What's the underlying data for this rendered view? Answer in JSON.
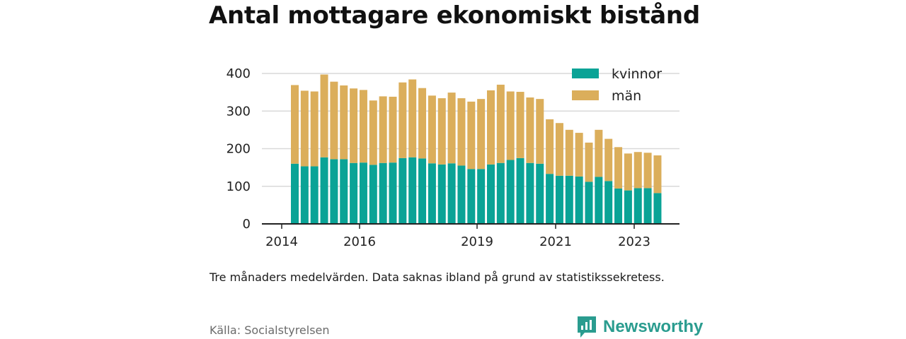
{
  "title": "Antal mottagare ekonomiskt bistånd",
  "note": "Tre månaders medelvärden. Data saknas ibland på grund av statistikssekretess.",
  "source": "Källa: Socialstyrelsen",
  "brand": {
    "name": "Newsworthy",
    "icon": "newsworthy-logo-icon",
    "color": "#2a9c8f"
  },
  "chart_data": {
    "type": "bar",
    "stacked": true,
    "x_tick_labels": [
      "2014",
      "2016",
      "2019",
      "2021",
      "2023"
    ],
    "y_ticks": [
      0,
      100,
      200,
      300,
      400
    ],
    "ylim": [
      0,
      410
    ],
    "grid": true,
    "legend_position": "top-right",
    "series": [
      {
        "name": "kvinnor",
        "color": "#0aa396",
        "values": [
          160,
          153,
          153,
          177,
          172,
          172,
          162,
          163,
          157,
          162,
          163,
          175,
          177,
          174,
          161,
          158,
          161,
          155,
          146,
          146,
          158,
          162,
          170,
          175,
          162,
          160,
          133,
          128,
          128,
          126,
          112,
          125,
          114,
          94,
          89,
          95,
          95,
          82
        ]
      },
      {
        "name": "män",
        "color": "#dbae5b",
        "values": [
          211,
          203,
          201,
          222,
          208,
          198,
          200,
          195,
          173,
          179,
          177,
          203,
          209,
          189,
          182,
          178,
          190,
          181,
          181,
          188,
          199,
          210,
          184,
          178,
          176,
          174,
          147,
          142,
          124,
          118,
          106,
          127,
          114,
          112,
          100,
          98,
          96,
          102
        ]
      }
    ]
  },
  "colors": {
    "axis": "#222222",
    "grid": "#d9d9d9",
    "bar_separator": "#ffffff"
  }
}
